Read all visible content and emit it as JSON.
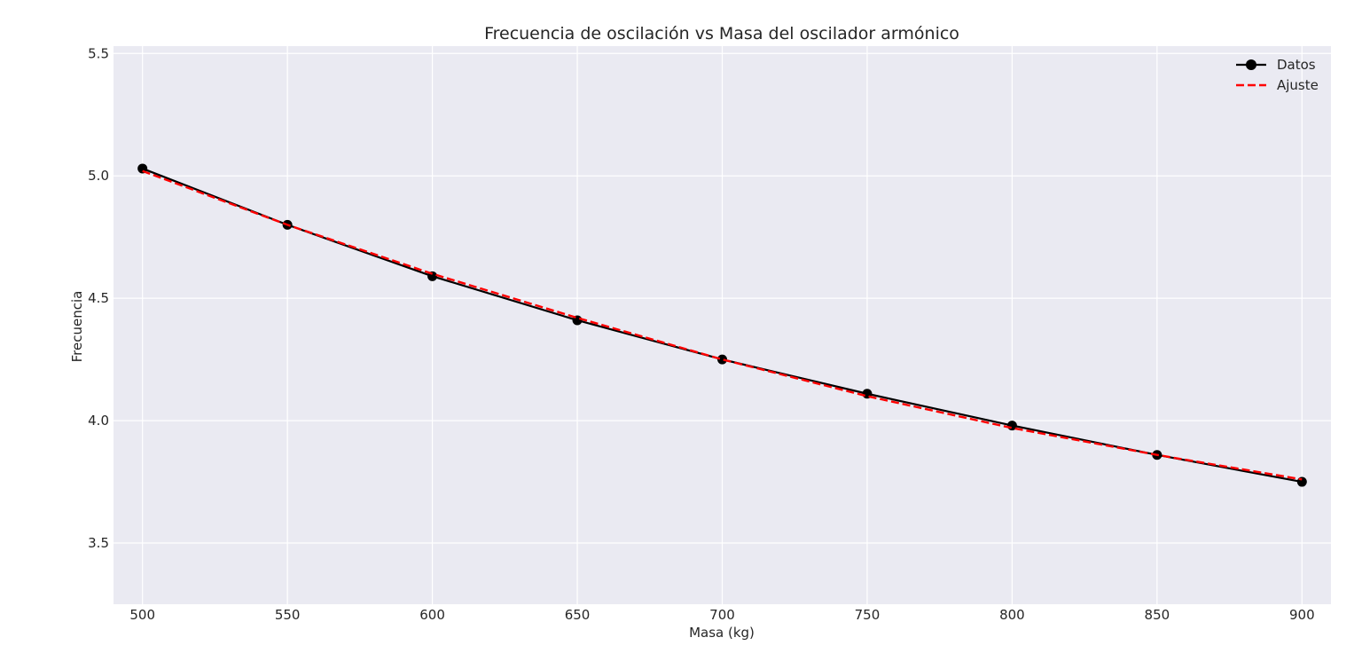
{
  "chart_data": {
    "type": "line",
    "title": "Frecuencia de oscilación vs Masa del oscilador armónico",
    "xlabel": "Masa (kg)",
    "ylabel": "Frecuencia",
    "xlim": [
      490,
      910
    ],
    "ylim": [
      3.25,
      5.53
    ],
    "xticks": [
      500,
      550,
      600,
      650,
      700,
      750,
      800,
      850,
      900
    ],
    "yticks": [
      3.5,
      4.0,
      4.5,
      5.0,
      5.5
    ],
    "xtick_labels": [
      "500",
      "550",
      "600",
      "650",
      "700",
      "750",
      "800",
      "850",
      "900"
    ],
    "ytick_labels": [
      "3.5",
      "4.0",
      "4.5",
      "5.0",
      "5.5"
    ],
    "grid": true,
    "legend_position": "top-right",
    "x": [
      500,
      550,
      600,
      650,
      700,
      750,
      800,
      850,
      900
    ],
    "series": [
      {
        "name": "Datos",
        "values": [
          5.03,
          4.8,
          4.59,
          4.41,
          4.25,
          4.11,
          3.98,
          3.86,
          3.75
        ],
        "color": "#000000",
        "style": "solid",
        "marker": "circle"
      },
      {
        "name": "Ajuste",
        "values": [
          5.02,
          4.8,
          4.6,
          4.42,
          4.25,
          4.1,
          3.97,
          3.86,
          3.76
        ],
        "color": "#ff0000",
        "style": "dashed",
        "marker": "none"
      }
    ],
    "background_color": "#eaeaf2",
    "grid_color": "#ffffff"
  }
}
